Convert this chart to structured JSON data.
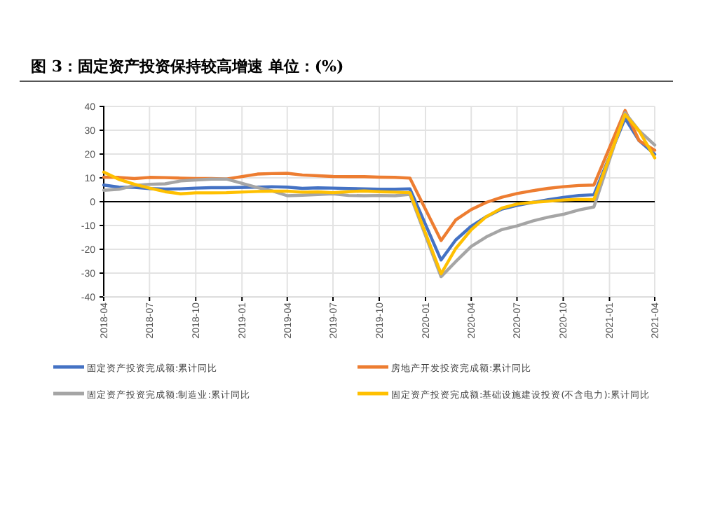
{
  "chart_data": {
    "type": "line",
    "title": "图 3：固定资产投资保持较高增速 单位：(%)",
    "x": [
      "2018-04",
      "2018-05",
      "2018-06",
      "2018-07",
      "2018-08",
      "2018-09",
      "2018-10",
      "2018-11",
      "2018-12",
      "2019-02",
      "2019-03",
      "2019-04",
      "2019-05",
      "2019-06",
      "2019-07",
      "2019-08",
      "2019-09",
      "2019-10",
      "2019-11",
      "2019-12",
      "2020-02",
      "2020-03",
      "2020-04",
      "2020-05",
      "2020-06",
      "2020-07",
      "2020-08",
      "2020-09",
      "2020-10",
      "2020-11",
      "2020-12",
      "2021-02",
      "2021-03",
      "2021-04"
    ],
    "series": [
      {
        "name": "固定资产投资完成额:累计同比",
        "color": "#4472c4",
        "values": [
          7.0,
          6.1,
          6.0,
          5.5,
          5.3,
          5.4,
          5.7,
          5.9,
          5.9,
          6.1,
          6.3,
          6.1,
          5.6,
          5.8,
          5.7,
          5.5,
          5.4,
          5.2,
          5.2,
          5.4,
          -24.5,
          -16.1,
          -10.3,
          -6.3,
          -3.1,
          -1.6,
          -0.3,
          0.8,
          1.8,
          2.6,
          2.9,
          35.0,
          25.6,
          19.9
        ]
      },
      {
        "name": "房地产开发投资完成额:累计同比",
        "color": "#ed7d31",
        "values": [
          10.3,
          10.2,
          9.7,
          10.2,
          10.1,
          9.9,
          9.7,
          9.7,
          9.5,
          11.6,
          11.8,
          11.9,
          11.2,
          10.9,
          10.6,
          10.5,
          10.5,
          10.3,
          10.2,
          9.9,
          -16.3,
          -7.7,
          -3.3,
          -0.3,
          1.9,
          3.4,
          4.6,
          5.6,
          6.3,
          6.8,
          7.0,
          38.3,
          25.6,
          21.6
        ]
      },
      {
        "name": "固定资产投资完成额:制造业:累计同比",
        "color": "#a5a5a5",
        "values": [
          4.8,
          5.2,
          6.8,
          7.3,
          7.5,
          8.7,
          9.1,
          9.5,
          9.5,
          5.9,
          4.6,
          2.5,
          2.7,
          3.0,
          3.3,
          2.6,
          2.5,
          2.6,
          2.5,
          3.1,
          -31.5,
          -25.2,
          -18.8,
          -14.8,
          -11.7,
          -10.2,
          -8.1,
          -6.5,
          -5.3,
          -3.5,
          -2.2,
          37.3,
          29.8,
          23.8
        ]
      },
      {
        "name": "固定资产投资完成额:基础设施建设投资(不含电力):累计同比",
        "color": "#ffc000",
        "values": [
          12.4,
          9.4,
          7.3,
          5.7,
          4.2,
          3.3,
          3.7,
          3.7,
          3.8,
          4.3,
          4.4,
          4.4,
          4.0,
          4.1,
          3.8,
          4.2,
          4.5,
          4.2,
          4.0,
          3.8,
          -30.3,
          -19.7,
          -11.8,
          -6.3,
          -2.7,
          -1.0,
          -0.3,
          0.2,
          0.7,
          1.0,
          0.9,
          36.6,
          29.7,
          18.4
        ]
      }
    ],
    "xlim": [
      "2018-04",
      "2021-04"
    ],
    "xticks": [
      "2018-04",
      "2018-07",
      "2018-10",
      "2019-01",
      "2019-04",
      "2019-07",
      "2019-10",
      "2020-01",
      "2020-04",
      "2020-07",
      "2020-10",
      "2021-01",
      "2021-04"
    ],
    "ylim": [
      -40,
      40
    ],
    "yticks": [
      -40,
      -30,
      -20,
      -10,
      0,
      10,
      20,
      30,
      40
    ],
    "grid": true,
    "legend": "bottom",
    "marker": "none",
    "line_style": "solid"
  }
}
